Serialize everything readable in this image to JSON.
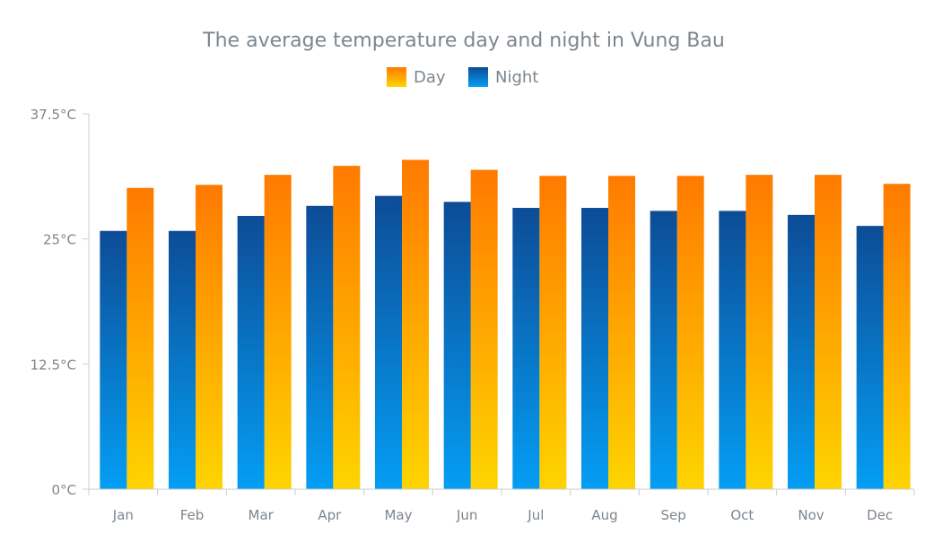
{
  "chart_data": {
    "type": "bar",
    "title": "The average temperature day and night in Vung Bau",
    "categories": [
      "Jan",
      "Feb",
      "Mar",
      "Apr",
      "May",
      "Jun",
      "Jul",
      "Aug",
      "Sep",
      "Oct",
      "Nov",
      "Dec"
    ],
    "series": [
      {
        "name": "Night",
        "values": [
          25.8,
          25.8,
          27.3,
          28.3,
          29.3,
          28.7,
          28.1,
          28.1,
          27.8,
          27.8,
          27.4,
          26.3
        ],
        "gradient": [
          "#0d4c96",
          "#049ef4"
        ]
      },
      {
        "name": "Day",
        "values": [
          30.1,
          30.4,
          31.4,
          32.3,
          32.9,
          31.9,
          31.3,
          31.3,
          31.3,
          31.4,
          31.4,
          30.5
        ],
        "gradient": [
          "#ff7a00",
          "#fdd400"
        ]
      }
    ],
    "y_ticks": [
      "0°C",
      "12.5°C",
      "25°C",
      "37.5°C"
    ],
    "y_tick_values": [
      0,
      12.5,
      25,
      37.5
    ],
    "ylim": [
      0,
      37.5
    ],
    "legend_placement": "top-center",
    "grid": false
  }
}
